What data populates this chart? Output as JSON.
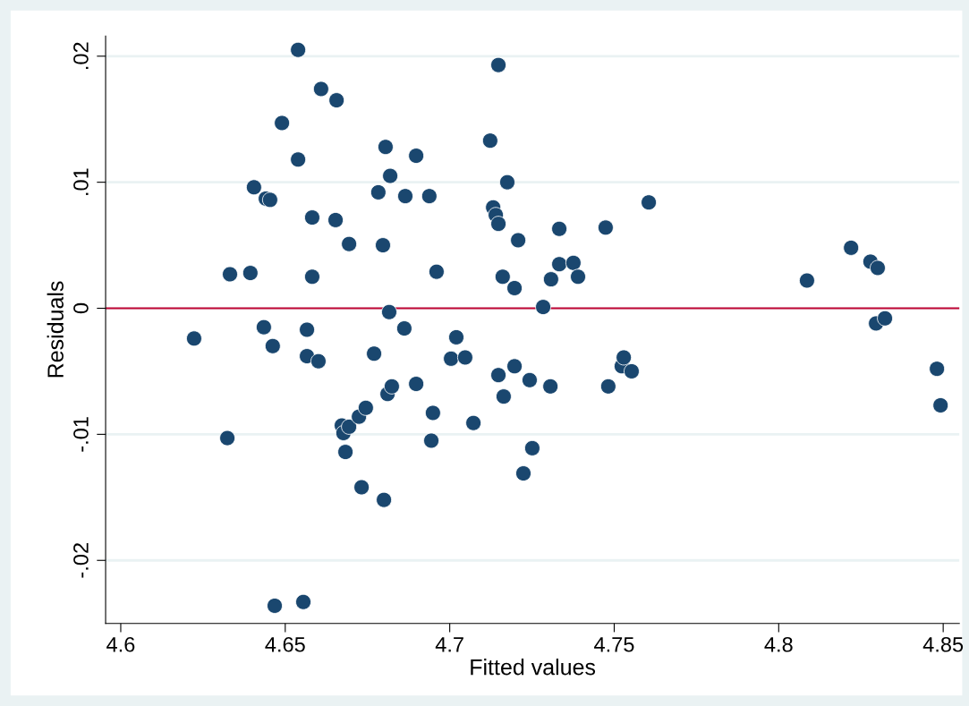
{
  "chart_data": {
    "type": "scatter",
    "xlabel": "Fitted values",
    "ylabel": "Residuals",
    "x": [
      4.6223,
      4.6324,
      4.6332,
      4.6394,
      4.6405,
      4.6435,
      4.6441,
      4.6454,
      4.6462,
      4.649,
      4.6539,
      4.6539,
      4.6566,
      4.6566,
      4.6582,
      4.6582,
      4.6601,
      4.6609,
      4.6653,
      4.6656,
      4.6672,
      4.6677,
      4.6694,
      4.6683,
      4.6694,
      4.6724,
      4.6732,
      4.6745,
      4.677,
      4.6783,
      4.6797,
      4.68,
      4.6805,
      4.6811,
      4.6816,
      4.6819,
      4.6824,
      4.6862,
      4.6865,
      4.6898,
      4.6898,
      4.6938,
      4.6944,
      4.6949,
      4.696,
      4.7004,
      4.702,
      4.7047,
      4.7072,
      4.7123,
      4.7132,
      4.714,
      4.7148,
      4.7148,
      4.7148,
      4.7161,
      4.7164,
      4.7175,
      4.7197,
      4.7197,
      4.7208,
      4.7224,
      4.7243,
      4.7251,
      4.7284,
      4.7306,
      4.7308,
      4.7333,
      4.7333,
      4.7376,
      4.739,
      4.7474,
      4.7482,
      4.7523,
      4.7529,
      4.7553,
      4.7605,
      4.8086,
      4.822,
      4.8279,
      4.8296,
      4.8301,
      4.8323,
      4.8481,
      4.8492,
      4.6468,
      4.6555
    ],
    "series": [
      {
        "color": "#1a476f",
        "values": [
          -0.0024,
          -0.0103,
          0.0027,
          0.0028,
          0.0096,
          -0.0015,
          0.0087,
          0.0086,
          -0.003,
          0.0147,
          0.0205,
          0.0118,
          -0.0017,
          -0.0038,
          0.0072,
          0.0025,
          -0.0042,
          0.0174,
          0.007,
          0.0165,
          -0.0093,
          -0.0099,
          -0.0094,
          -0.0114,
          0.0051,
          -0.0086,
          -0.0142,
          -0.0079,
          -0.0036,
          0.0092,
          0.005,
          -0.0152,
          0.0128,
          -0.0068,
          -0.0003,
          0.0105,
          -0.0062,
          -0.0016,
          0.0089,
          0.0121,
          -0.006,
          0.0089,
          -0.0105,
          -0.0083,
          0.0029,
          -0.004,
          -0.0023,
          -0.0039,
          -0.0091,
          0.0133,
          0.008,
          0.0074,
          0.0193,
          0.0067,
          -0.0053,
          0.0025,
          -0.007,
          0.01,
          -0.0046,
          0.0016,
          0.0054,
          -0.0131,
          -0.0057,
          -0.0111,
          0.0001,
          -0.0062,
          0.0023,
          0.0063,
          0.0035,
          0.0036,
          0.0025,
          0.0064,
          -0.0062,
          -0.0046,
          -0.0039,
          -0.005,
          0.0084,
          0.0022,
          0.0048,
          0.0037,
          -0.0012,
          0.0032,
          -0.0008,
          -0.0048,
          -0.0077,
          -0.0236,
          -0.0233
        ]
      }
    ],
    "xlim": [
      4.5954,
      4.8549
    ],
    "xticks": [
      4.6,
      4.65,
      4.7,
      4.75,
      4.8,
      4.85
    ],
    "ylim": [
      -0.025,
      0.0216
    ],
    "yticks": [
      {
        "value": -0.02,
        "label": "-.02"
      },
      {
        "value": -0.01,
        "label": "-.01"
      },
      0,
      {
        "value": 0.01,
        "label": ".01"
      },
      {
        "value": 0.02,
        "label": ".02"
      }
    ],
    "ref_lines": [
      {
        "axis": "y",
        "value": 0,
        "color": "#c10534",
        "line_style": "solid"
      }
    ],
    "grid": "y",
    "marker": "circle",
    "legend": false
  }
}
